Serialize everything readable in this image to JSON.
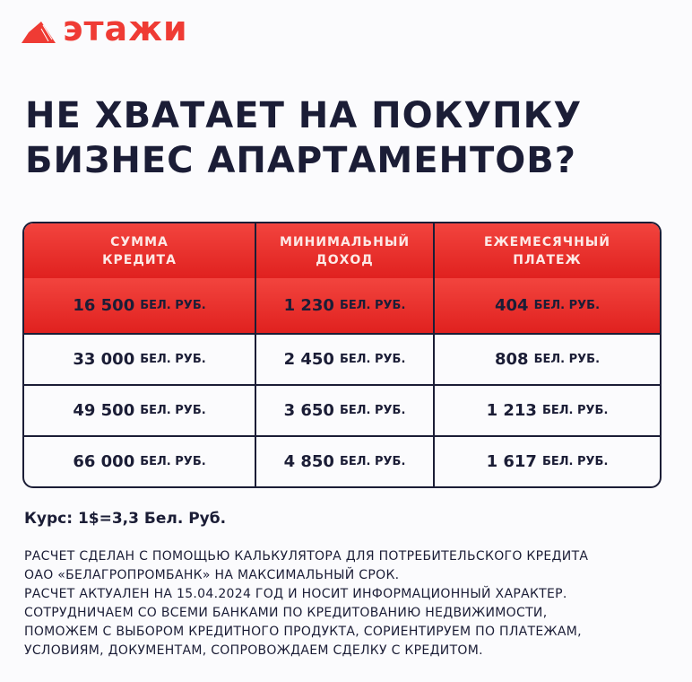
{
  "logo": {
    "text": "этажи",
    "color": "#ef3b34"
  },
  "title": [
    "НЕ ХВАТАЕТ НА ПОКУПКУ",
    "БИЗНЕС АПАРТАМЕНТОВ?"
  ],
  "table": {
    "headers": [
      "СУММА\nКРЕДИТА",
      "МИНИМАЛЬНЫЙ\nДОХОД",
      "ЕЖЕМЕСЯЧНЫЙ\nПЛАТЕЖ"
    ],
    "unit": "БЕЛ. РУБ.",
    "rows": [
      [
        "16 500",
        "1 230",
        "404"
      ],
      [
        "33 000",
        "2 450",
        "808"
      ],
      [
        "49 500",
        "3 650",
        "1 213"
      ],
      [
        "66 000",
        "4 850",
        "1 617"
      ]
    ]
  },
  "rate": "Курс: 1$=3,3 Бел. Руб.",
  "notes": [
    "РАСЧЕТ СДЕЛАН С ПОМОЩЬЮ КАЛЬКУЛЯТОРА ДЛЯ ПОТРЕБИТЕЛЬСКОГО КРЕДИТА",
    "ОАО «БЕЛАГРОПРОМБАНК» НА МАКСИМАЛЬНЫЙ СРОК.",
    "РАСЧЕТ АКТУАЛЕН НА 15.04.2024 ГОД И НОСИТ ИНФОРМАЦИОННЫЙ ХАРАКТЕР.",
    "СОТРУДНИЧАЕМ СО ВСЕМИ БАНКАМИ ПО КРЕДИТОВАНИЮ НЕДВИЖИМОСТИ,",
    "ПОМОЖЕМ С ВЫБОРОМ КРЕДИТНОГО ПРОДУКТА, СОРИЕНТИРУЕМ ПО ПЛАТЕЖАМ,",
    "УСЛОВИЯМ, ДОКУМЕНТАМ, СОПРОВОЖДАЕМ СДЕЛКУ С КРЕДИТОМ."
  ]
}
